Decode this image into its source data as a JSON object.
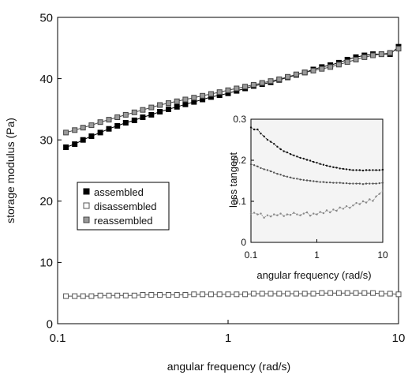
{
  "chart_data": [
    {
      "type": "line",
      "xscale": "log",
      "xlim": [
        0.1,
        10
      ],
      "ylim": [
        0,
        50
      ],
      "xticks": [
        0.1,
        1,
        10
      ],
      "xtick_labels": [
        "0.1",
        "1",
        "10"
      ],
      "yticks": [
        0,
        10,
        20,
        30,
        40,
        50
      ],
      "ytick_labels": [
        "0",
        "10",
        "20",
        "30",
        "40",
        "50"
      ],
      "xlabel": "angular frequency (rad/s)",
      "ylabel": "storage modulus (Pa)",
      "grid": false,
      "legend_position": "middle-left",
      "series": [
        {
          "name": "assembled",
          "marker": "filled-square",
          "color": "#000000",
          "fill": "#000000",
          "x": [
            0.112,
            0.126,
            0.141,
            0.158,
            0.178,
            0.2,
            0.224,
            0.251,
            0.282,
            0.316,
            0.355,
            0.398,
            0.447,
            0.501,
            0.562,
            0.631,
            0.708,
            0.794,
            0.891,
            1.0,
            1.122,
            1.259,
            1.413,
            1.585,
            1.778,
            1.995,
            2.239,
            2.512,
            2.818,
            3.162,
            3.548,
            3.981,
            4.467,
            5.012,
            5.623,
            6.31,
            7.079,
            7.943,
            8.913,
            10.0
          ],
          "y": [
            28.8,
            29.3,
            30.0,
            30.6,
            31.2,
            31.8,
            32.3,
            32.8,
            33.2,
            33.7,
            34.1,
            34.6,
            35.0,
            35.4,
            35.8,
            36.2,
            36.6,
            37.0,
            37.3,
            37.6,
            38.0,
            38.4,
            38.8,
            39.1,
            39.4,
            39.8,
            40.2,
            40.6,
            41.0,
            41.5,
            41.9,
            42.2,
            42.6,
            43.1,
            43.5,
            43.8,
            44.0,
            44.0,
            44.0,
            45.2
          ]
        },
        {
          "name": "disassembled",
          "marker": "open-square",
          "color": "#555555",
          "fill": "#ffffff",
          "x": [
            0.112,
            0.126,
            0.141,
            0.158,
            0.178,
            0.2,
            0.224,
            0.251,
            0.282,
            0.316,
            0.355,
            0.398,
            0.447,
            0.501,
            0.562,
            0.631,
            0.708,
            0.794,
            0.891,
            1.0,
            1.122,
            1.259,
            1.413,
            1.585,
            1.778,
            1.995,
            2.239,
            2.512,
            2.818,
            3.162,
            3.548,
            3.981,
            4.467,
            5.012,
            5.623,
            6.31,
            7.079,
            7.943,
            8.913,
            10.0
          ],
          "y": [
            4.5,
            4.5,
            4.5,
            4.5,
            4.6,
            4.6,
            4.6,
            4.6,
            4.6,
            4.7,
            4.7,
            4.7,
            4.7,
            4.7,
            4.7,
            4.8,
            4.8,
            4.8,
            4.8,
            4.8,
            4.8,
            4.8,
            4.9,
            4.9,
            4.9,
            4.9,
            4.9,
            4.9,
            4.9,
            4.9,
            5.0,
            5.0,
            5.0,
            5.0,
            5.0,
            5.0,
            5.0,
            4.9,
            4.9,
            4.8
          ]
        },
        {
          "name": "reassembled",
          "marker": "gray-square",
          "color": "#444444",
          "fill": "#9a9a9a",
          "x": [
            0.112,
            0.126,
            0.141,
            0.158,
            0.178,
            0.2,
            0.224,
            0.251,
            0.282,
            0.316,
            0.355,
            0.398,
            0.447,
            0.501,
            0.562,
            0.631,
            0.708,
            0.794,
            0.891,
            1.0,
            1.122,
            1.259,
            1.413,
            1.585,
            1.778,
            1.995,
            2.239,
            2.512,
            2.818,
            3.162,
            3.548,
            3.981,
            4.467,
            5.012,
            5.623,
            6.31,
            7.079,
            7.943,
            8.913,
            10.0
          ],
          "y": [
            31.2,
            31.6,
            32.0,
            32.4,
            32.9,
            33.3,
            33.7,
            34.1,
            34.5,
            34.9,
            35.3,
            35.7,
            36.0,
            36.3,
            36.6,
            36.9,
            37.2,
            37.5,
            37.8,
            38.1,
            38.4,
            38.7,
            39.0,
            39.3,
            39.6,
            39.9,
            40.3,
            40.7,
            41.0,
            41.3,
            41.6,
            41.9,
            42.3,
            42.7,
            43.1,
            43.5,
            43.8,
            44.0,
            44.2,
            44.9
          ]
        }
      ]
    },
    {
      "type": "line",
      "xscale": "log",
      "xlim": [
        0.1,
        10
      ],
      "ylim": [
        0,
        0.3
      ],
      "xticks": [
        0.1,
        1,
        10
      ],
      "xtick_labels": [
        "0.1",
        "1",
        "10"
      ],
      "yticks": [
        0,
        0.1,
        0.2,
        0.3
      ],
      "ytick_labels": [
        "0",
        "0.1",
        "0.2",
        "0.3"
      ],
      "xlabel": "angular frequency (rad/s)",
      "ylabel": "loss tangent",
      "grid": false,
      "series": [
        {
          "color": "#111111",
          "x": [
            0.1,
            0.112,
            0.126,
            0.141,
            0.158,
            0.178,
            0.2,
            0.224,
            0.251,
            0.282,
            0.316,
            0.355,
            0.398,
            0.447,
            0.501,
            0.562,
            0.631,
            0.708,
            0.794,
            0.891,
            1.0,
            1.122,
            1.259,
            1.413,
            1.585,
            1.778,
            1.995,
            2.239,
            2.512,
            2.818,
            3.162,
            3.548,
            3.981,
            4.467,
            5.012,
            5.623,
            6.31,
            7.079,
            7.943,
            8.913,
            10.0
          ],
          "y": [
            0.28,
            0.275,
            0.275,
            0.265,
            0.258,
            0.25,
            0.245,
            0.24,
            0.233,
            0.227,
            0.222,
            0.219,
            0.215,
            0.212,
            0.209,
            0.206,
            0.204,
            0.201,
            0.199,
            0.196,
            0.194,
            0.191,
            0.189,
            0.187,
            0.185,
            0.183,
            0.182,
            0.18,
            0.179,
            0.178,
            0.177,
            0.176,
            0.176,
            0.176,
            0.175,
            0.176,
            0.176,
            0.176,
            0.176,
            0.176,
            0.177
          ]
        },
        {
          "color": "#555555",
          "x": [
            0.1,
            0.112,
            0.126,
            0.141,
            0.158,
            0.178,
            0.2,
            0.224,
            0.251,
            0.282,
            0.316,
            0.355,
            0.398,
            0.447,
            0.501,
            0.562,
            0.631,
            0.708,
            0.794,
            0.891,
            1.0,
            1.122,
            1.259,
            1.413,
            1.585,
            1.778,
            1.995,
            2.239,
            2.512,
            2.818,
            3.162,
            3.548,
            3.981,
            4.467,
            5.012,
            5.623,
            6.31,
            7.079,
            7.943,
            8.913,
            10.0
          ],
          "y": [
            0.19,
            0.188,
            0.185,
            0.181,
            0.178,
            0.176,
            0.173,
            0.17,
            0.167,
            0.165,
            0.162,
            0.16,
            0.158,
            0.156,
            0.155,
            0.153,
            0.152,
            0.151,
            0.15,
            0.149,
            0.148,
            0.147,
            0.147,
            0.146,
            0.146,
            0.145,
            0.145,
            0.145,
            0.144,
            0.144,
            0.143,
            0.143,
            0.143,
            0.143,
            0.142,
            0.143,
            0.143,
            0.143,
            0.143,
            0.144,
            0.145
          ]
        },
        {
          "color": "#888888",
          "x": [
            0.1,
            0.112,
            0.126,
            0.141,
            0.158,
            0.178,
            0.2,
            0.224,
            0.251,
            0.282,
            0.316,
            0.355,
            0.398,
            0.447,
            0.501,
            0.562,
            0.631,
            0.708,
            0.794,
            0.891,
            1.0,
            1.122,
            1.259,
            1.413,
            1.585,
            1.778,
            1.995,
            2.239,
            2.512,
            2.818,
            3.162,
            3.548,
            3.981,
            4.467,
            5.012,
            5.623,
            6.31,
            7.079,
            7.943,
            8.913,
            10.0
          ],
          "y": [
            0.07,
            0.072,
            0.068,
            0.07,
            0.06,
            0.066,
            0.063,
            0.068,
            0.066,
            0.07,
            0.064,
            0.068,
            0.067,
            0.072,
            0.068,
            0.066,
            0.07,
            0.073,
            0.065,
            0.07,
            0.068,
            0.074,
            0.071,
            0.078,
            0.073,
            0.08,
            0.077,
            0.085,
            0.082,
            0.088,
            0.084,
            0.09,
            0.096,
            0.093,
            0.1,
            0.097,
            0.105,
            0.101,
            0.112,
            0.118,
            0.125
          ]
        }
      ]
    }
  ]
}
